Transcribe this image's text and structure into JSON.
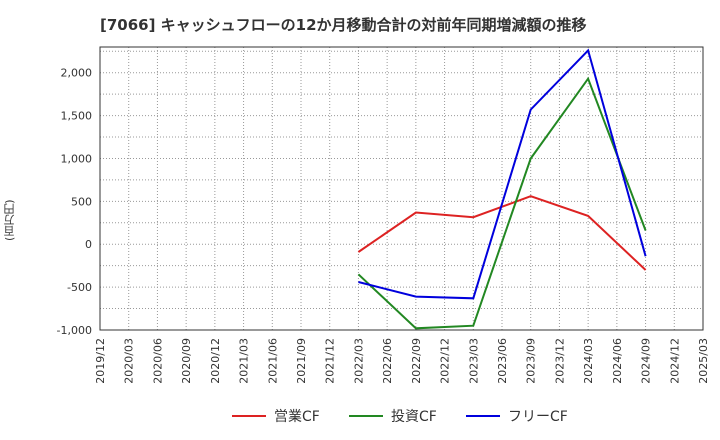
{
  "chart_data": {
    "type": "line",
    "title": "[7066]  キャッシュフローの12か月移動合計の対前年同期増減額の推移",
    "ylabel": "(百万円)",
    "xlabel": "",
    "ylim": [
      -1000,
      2300
    ],
    "yticks": [
      -1000,
      -500,
      0,
      500,
      1000,
      1500,
      2000
    ],
    "ytick_labels": [
      "-1,000",
      "-500",
      "0",
      "500",
      "1,000",
      "1,500",
      "2,000"
    ],
    "categories": [
      "2019/12",
      "2020/03",
      "2020/06",
      "2020/09",
      "2020/12",
      "2021/03",
      "2021/06",
      "2021/09",
      "2021/12",
      "2022/03",
      "2022/06",
      "2022/09",
      "2022/12",
      "2023/03",
      "2023/06",
      "2023/09",
      "2023/12",
      "2024/03",
      "2024/06",
      "2024/09",
      "2024/12",
      "2025/03"
    ],
    "grid": true,
    "legend_position": "bottom",
    "series": [
      {
        "name": "営業CF",
        "color": "#dd2222",
        "values": [
          null,
          null,
          null,
          null,
          null,
          null,
          null,
          null,
          null,
          -90,
          null,
          370,
          null,
          315,
          null,
          560,
          null,
          330,
          null,
          -300,
          null,
          null
        ]
      },
      {
        "name": "投資CF",
        "color": "#228822",
        "values": [
          null,
          null,
          null,
          null,
          null,
          null,
          null,
          null,
          null,
          -350,
          null,
          -980,
          null,
          -950,
          null,
          1000,
          null,
          1930,
          null,
          160,
          null,
          null
        ]
      },
      {
        "name": "フリーCF",
        "color": "#0000dd",
        "values": [
          null,
          null,
          null,
          null,
          null,
          null,
          null,
          null,
          null,
          -440,
          null,
          -610,
          null,
          -630,
          null,
          1570,
          null,
          2260,
          null,
          -140,
          null,
          null
        ]
      }
    ]
  }
}
